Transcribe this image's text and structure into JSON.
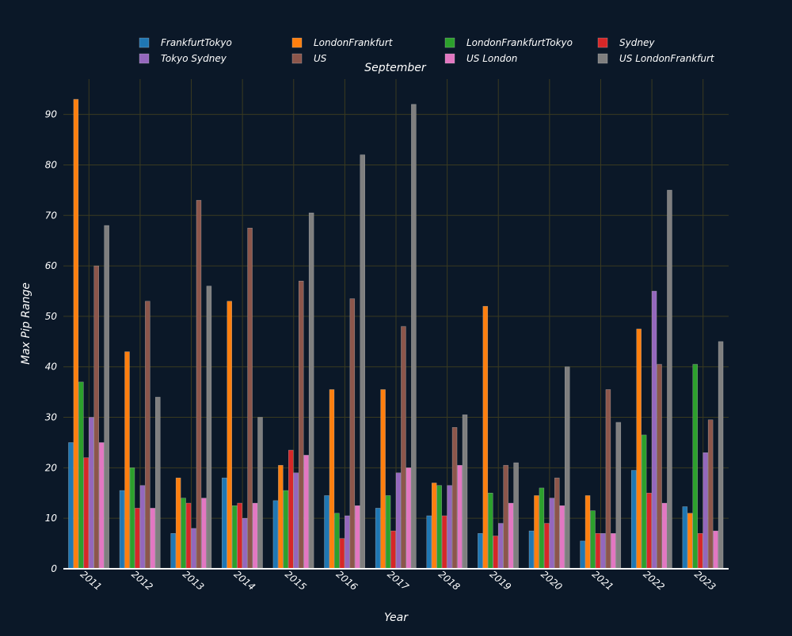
{
  "chart_data": {
    "type": "bar",
    "title": "September",
    "xlabel": "Year",
    "ylabel": "Max Pip Range",
    "ylim": [
      0,
      97
    ],
    "yticks": [
      0,
      10,
      20,
      30,
      40,
      50,
      60,
      70,
      80,
      90
    ],
    "grid": true,
    "legend_placement": "top",
    "background_color": "#0b1828",
    "grid_color": "#3a3a20",
    "categories": [
      "2011",
      "2012",
      "2013",
      "2014",
      "2015",
      "2016",
      "2017",
      "2018",
      "2019",
      "2020",
      "2021",
      "2022",
      "2023"
    ],
    "series": [
      {
        "name": "FrankfurtTokyo",
        "color": "#1f77b4",
        "values": [
          25,
          15.5,
          7,
          18,
          13.5,
          14.5,
          12,
          10.5,
          7,
          7.5,
          5.5,
          19.5,
          12.3
        ]
      },
      {
        "name": "LondonFrankfurt",
        "color": "#ff7f0e",
        "values": [
          93,
          43,
          18,
          53,
          20.5,
          35.5,
          35.5,
          17,
          52,
          14.5,
          14.5,
          47.5,
          11
        ]
      },
      {
        "name": "LondonFrankfurtTokyo",
        "color": "#2ca02c",
        "values": [
          37,
          20,
          14,
          12.5,
          15.5,
          11,
          14.5,
          16.5,
          15,
          16,
          11.5,
          26.5,
          40.5
        ]
      },
      {
        "name": "Sydney",
        "color": "#d62728",
        "values": [
          22,
          12,
          13,
          13,
          23.5,
          6,
          7.5,
          10.5,
          6.5,
          9,
          7,
          15,
          7
        ]
      },
      {
        "name": "Tokyo Sydney",
        "color": "#9467bd",
        "values": [
          30,
          16.5,
          8,
          10,
          19,
          10.5,
          19,
          16.5,
          9,
          14,
          7,
          55,
          23
        ]
      },
      {
        "name": "US",
        "color": "#8c564b",
        "values": [
          60,
          53,
          73,
          67.5,
          57,
          53.5,
          48,
          28,
          20.5,
          18,
          35.5,
          40.5,
          29.5
        ]
      },
      {
        "name": "US London",
        "color": "#e377c2",
        "values": [
          25,
          12,
          14,
          13,
          22.5,
          12.5,
          20,
          20.5,
          13,
          12.5,
          7,
          13,
          7.5
        ]
      },
      {
        "name": "US LondonFrankfurt",
        "color": "#7f7f7f",
        "values": [
          68,
          34,
          56,
          30,
          70.5,
          82,
          92,
          30.5,
          21,
          40,
          29,
          75,
          45
        ]
      }
    ]
  }
}
